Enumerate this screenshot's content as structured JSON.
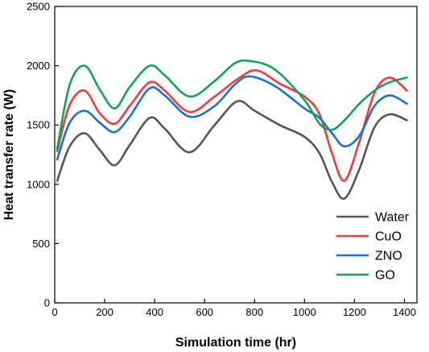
{
  "chart_data": {
    "type": "line",
    "title": "",
    "xlabel": "Simulation time (hr)",
    "ylabel": "Heat transfer rate (W)",
    "xlim": [
      0,
      1450
    ],
    "ylim": [
      0,
      2500
    ],
    "xticks": [
      0,
      200,
      400,
      600,
      800,
      1000,
      1200,
      1400
    ],
    "yticks": [
      0,
      500,
      1000,
      1500,
      2000,
      2500
    ],
    "grid": false,
    "legend_position": "bottom-right",
    "series": [
      {
        "name": "Water",
        "color": "#555555",
        "x": [
          10,
          60,
          120,
          180,
          240,
          300,
          380,
          440,
          540,
          640,
          730,
          800,
          900,
          1000,
          1060,
          1110,
          1160,
          1220,
          1280,
          1340,
          1410
        ],
        "y": [
          1030,
          1320,
          1430,
          1290,
          1160,
          1330,
          1560,
          1470,
          1270,
          1500,
          1700,
          1620,
          1500,
          1400,
          1260,
          1020,
          880,
          1130,
          1480,
          1590,
          1540
        ]
      },
      {
        "name": "CuO",
        "color": "#f0393b",
        "x": [
          10,
          60,
          120,
          180,
          240,
          300,
          380,
          440,
          540,
          640,
          740,
          810,
          900,
          1000,
          1060,
          1110,
          1160,
          1220,
          1280,
          1340,
          1410
        ],
        "y": [
          1280,
          1670,
          1790,
          1600,
          1510,
          1660,
          1860,
          1790,
          1610,
          1740,
          1900,
          1960,
          1850,
          1740,
          1590,
          1260,
          1030,
          1360,
          1770,
          1900,
          1790
        ]
      },
      {
        "name": "ZNO",
        "color": "#1a6fd6",
        "x": [
          10,
          60,
          120,
          180,
          240,
          300,
          380,
          440,
          540,
          640,
          720,
          780,
          880,
          1000,
          1060,
          1110,
          1160,
          1220,
          1280,
          1340,
          1410
        ],
        "y": [
          1210,
          1520,
          1620,
          1520,
          1440,
          1570,
          1810,
          1750,
          1570,
          1660,
          1840,
          1910,
          1830,
          1640,
          1560,
          1430,
          1320,
          1410,
          1660,
          1750,
          1680
        ]
      },
      {
        "name": "GO",
        "color": "#13a05c",
        "x": [
          10,
          60,
          120,
          180,
          240,
          300,
          380,
          440,
          540,
          640,
          720,
          780,
          880,
          1000,
          1060,
          1110,
          1160,
          1220,
          1280,
          1340,
          1410
        ],
        "y": [
          1300,
          1840,
          2000,
          1800,
          1640,
          1820,
          2000,
          1920,
          1740,
          1870,
          2020,
          2040,
          1970,
          1710,
          1510,
          1460,
          1540,
          1680,
          1790,
          1860,
          1900
        ]
      }
    ]
  }
}
